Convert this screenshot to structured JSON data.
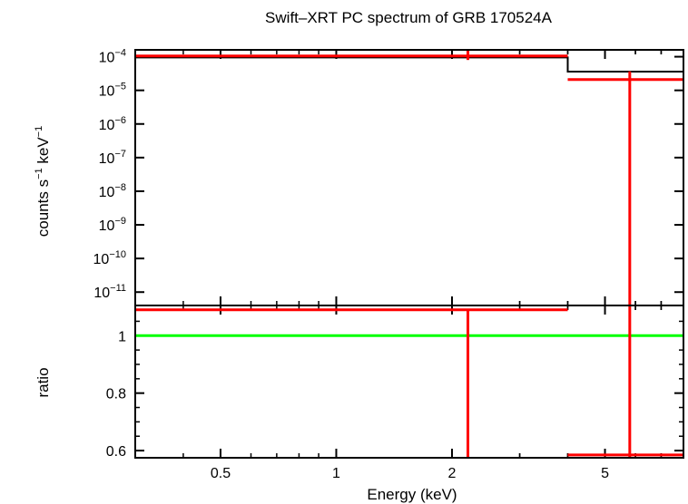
{
  "chart_data": {
    "title": "Swift–XRT PC spectrum of GRB 170524A",
    "xlabel": "Energy (keV)",
    "x_scale": "log",
    "xlim": [
      0.3,
      8.0
    ],
    "x_ticks": [
      {
        "value": 0.5,
        "label": "0.5"
      },
      {
        "value": 1,
        "label": "1"
      },
      {
        "value": 2,
        "label": "2"
      },
      {
        "value": 5,
        "label": "5"
      }
    ],
    "panels": [
      {
        "id": "spectrum",
        "ylabel_parts": [
          "counts s",
          "−1",
          " keV",
          "−1"
        ],
        "y_scale": "log",
        "ylim": [
          4e-12,
          0.00016
        ],
        "y_ticks": [
          {
            "value": 0.0001,
            "base": "10",
            "exp": "−4"
          },
          {
            "value": 1e-05,
            "base": "10",
            "exp": "−5"
          },
          {
            "value": 1e-06,
            "base": "10",
            "exp": "−6"
          },
          {
            "value": 1e-07,
            "base": "10",
            "exp": "−7"
          },
          {
            "value": 1e-08,
            "base": "10",
            "exp": "−8"
          },
          {
            "value": 1e-09,
            "base": "10",
            "exp": "−9"
          },
          {
            "value": 1e-10,
            "base": "10",
            "exp": "−10"
          },
          {
            "value": 1e-11,
            "base": "10",
            "exp": "−11"
          }
        ],
        "model_steps": [
          {
            "x0": 0.3,
            "x1": 4.0,
            "y": 9.5e-05
          },
          {
            "x0": 4.0,
            "x1": 8.0,
            "y": 3.6e-05
          }
        ],
        "data_points": [
          {
            "x": 2.2,
            "x0": 0.3,
            "x1": 4.0,
            "y": 0.000105,
            "ylo": 8e-05,
            "yhi": 0.00016
          },
          {
            "x": 5.8,
            "x0": 4.0,
            "x1": 8.0,
            "y": 2.1e-05,
            "ylo": 4e-12,
            "yhi": 3.7e-05
          }
        ]
      },
      {
        "id": "ratio",
        "ylabel": "ratio",
        "y_scale": "linear",
        "ylim": [
          0.575,
          1.105
        ],
        "y_ticks": [
          {
            "value": 0.6,
            "label": "0.6"
          },
          {
            "value": 0.8,
            "label": "0.8"
          },
          {
            "value": 1,
            "label": "1"
          }
        ],
        "reference_line": {
          "y": 1.0,
          "color": "#00ff00"
        },
        "data_points": [
          {
            "x": 2.2,
            "x0": 0.3,
            "x1": 4.0,
            "y": 1.09,
            "ylo": 0.575,
            "yhi": 1.09
          },
          {
            "x": 5.8,
            "x0": 4.0,
            "x1": 8.0,
            "y": 0.585,
            "ylo": 0.575,
            "yhi": 1.105
          }
        ]
      }
    ],
    "colors": {
      "data": "#ff0000",
      "model": "#000000",
      "reference": "#00ff00"
    }
  }
}
